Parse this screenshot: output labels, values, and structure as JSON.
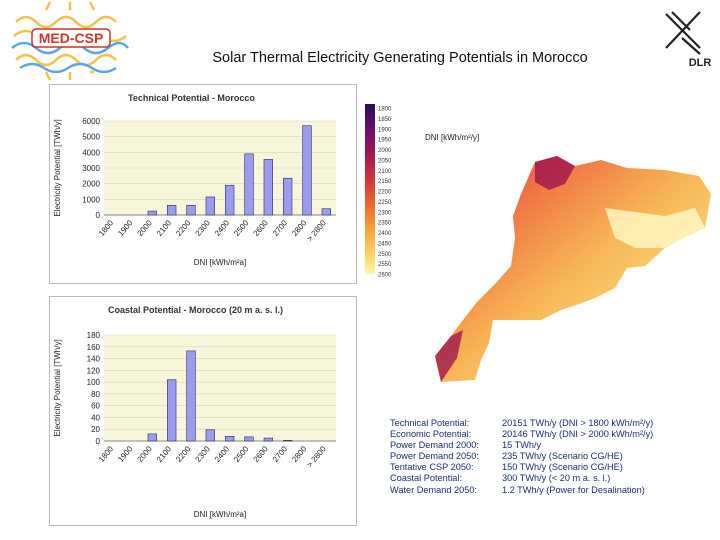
{
  "header": {
    "title": "Solar Thermal Electricity Generating Potentials in Morocco",
    "logo_left": "MED-CSP",
    "logo_right": "DLR"
  },
  "colors": {
    "bar_fill": "#9a9cf0",
    "bar_stroke": "#2a2a6a",
    "plot_bg": "#f8f6da",
    "stats_text": "#1a2f6e"
  },
  "legend": {
    "title": "DNI [kWh/m²/y]",
    "ticks": [
      "1800",
      "1850",
      "1900",
      "1950",
      "2000",
      "2050",
      "2100",
      "2150",
      "2200",
      "2250",
      "2300",
      "2350",
      "2400",
      "2450",
      "2500",
      "2550",
      "2600"
    ]
  },
  "chart_data": [
    {
      "type": "bar",
      "title": "Technical Potential - Morocco",
      "xlabel": "DNI [kWh/m²a]",
      "ylabel": "Electricity Potential [TWh/y]",
      "categories": [
        "1800",
        "1900",
        "2000",
        "2100",
        "2200",
        "2300",
        "2400",
        "2500",
        "2600",
        "2700",
        "2800",
        "> 2800"
      ],
      "values": [
        0,
        0,
        250,
        620,
        620,
        1150,
        1900,
        3900,
        3550,
        2350,
        5700,
        400
      ],
      "ylim": [
        0,
        6000
      ],
      "yticks": [
        "6000",
        "5000",
        "4000",
        "3000",
        "2000",
        "1000",
        "0"
      ],
      "grid": true
    },
    {
      "type": "bar",
      "title": "Coastal Potential - Morocco (20 m a. s. l.)",
      "xlabel": "DNI [kWh/m²a]",
      "ylabel": "Electricity Potential [TWh/y]",
      "categories": [
        "1800",
        "1900",
        "2000",
        "2100",
        "2200",
        "2300",
        "2400",
        "2500",
        "2600",
        "2700",
        "2800",
        "> 2800"
      ],
      "values": [
        0,
        0,
        12,
        104,
        153,
        19,
        8,
        7,
        5,
        1,
        0,
        0
      ],
      "ylim": [
        0,
        180
      ],
      "yticks": [
        "180",
        "160",
        "140",
        "120",
        "100",
        "80",
        "60",
        "40",
        "20",
        "0"
      ],
      "grid": true
    }
  ],
  "stats": [
    {
      "label": "Technical Potential:",
      "value": "20151 TWh/y (DNI > 1800 kWh/m²/y)"
    },
    {
      "label": "Economic Potential:",
      "value": "20146 TWh/y (DNI > 2000 kWh/m²/y)"
    },
    {
      "label": "Power Demand 2000:",
      "value": "15 TWh/y"
    },
    {
      "label": "Power Demand 2050:",
      "value": "235 TWh/y (Scenario CG/HE)"
    },
    {
      "label": "Tentative CSP 2050:",
      "value": "150 TWh/y (Scenario CG/HE)"
    },
    {
      "label": "Coastal Potential:",
      "value": "300 TWh/y (< 20 m a. s. l.)"
    },
    {
      "label": "Water Demand 2050:",
      "value": "1.2 TWh/y (Power for Desalination)"
    }
  ]
}
